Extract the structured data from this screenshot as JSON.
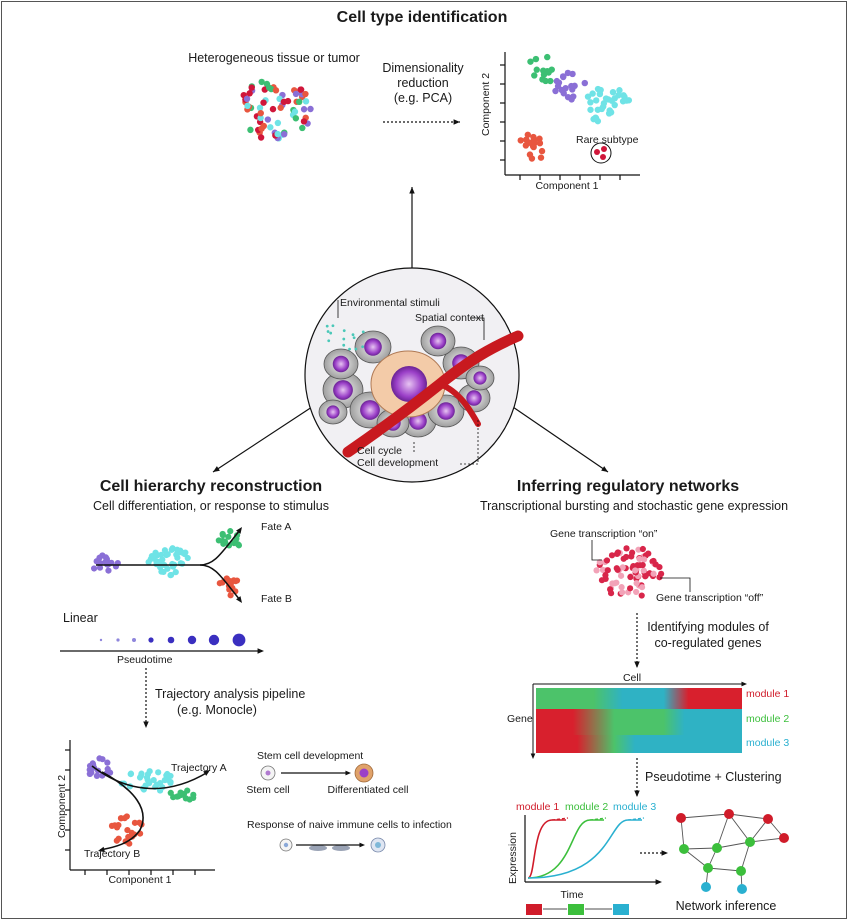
{
  "sections": {
    "cell_type": {
      "title": "Cell type identification",
      "tissue_label": "Heterogeneous tissue or tumor",
      "dimred_line1": "Dimensionality",
      "dimred_line2": "reduction",
      "dimred_line3": "(e.g. PCA)",
      "axis_x": "Component 1",
      "axis_y": "Component 2",
      "rare_label": "Rare subtype"
    },
    "center": {
      "env_label": "Environmental stimuli",
      "spatial_label": "Spatial context",
      "cycle_label": "Cell cycle",
      "development_label": "Cell development"
    },
    "hierarchy": {
      "title": "Cell hierarchy reconstruction",
      "subtitle": "Cell differentiation, or response to stimulus",
      "fate_a": "Fate A",
      "fate_b": "Fate B",
      "linear_label": "Linear",
      "pseudotime_label": "Pseudotime",
      "pipeline_line1": "Trajectory analysis pipeline",
      "pipeline_line2": "(e.g. Monocle)",
      "traj_a": "Trajectory A",
      "traj_b": "Trajectory B",
      "axis_x": "Component 1",
      "axis_y": "Component 2",
      "stem_title": "Stem cell development",
      "stem_cell": "Stem cell",
      "diff_cell": "Differentiated cell",
      "immune_title": "Response of naive immune cells to infection"
    },
    "regulatory": {
      "title": "Inferring regulatory networks",
      "subtitle": "Transcriptional bursting and stochastic gene expression",
      "on_label": "Gene transcription “on”",
      "off_label": "Gene transcription “off”",
      "modules_line1": "Identifying modules of",
      "modules_line2": "co-regulated genes",
      "cell_label": "Cell",
      "gene_label": "Gene",
      "modules": [
        "module 1",
        "module 2",
        "module 3"
      ],
      "pseudo_cluster": "Pseudotime + Clustering",
      "expression_label": "Expression",
      "time_label": "Time",
      "network_label": "Network inference"
    }
  },
  "colors": {
    "green": "#3cbf73",
    "purple": "#8a6fd6",
    "cyan": "#6fe3e6",
    "orange": "#e8563f",
    "red": "#d0163a",
    "module1": "#d01c2a",
    "module2": "#3cbf3c",
    "module3": "#2ab0d0",
    "blue_dot": "#3a2fc0"
  }
}
